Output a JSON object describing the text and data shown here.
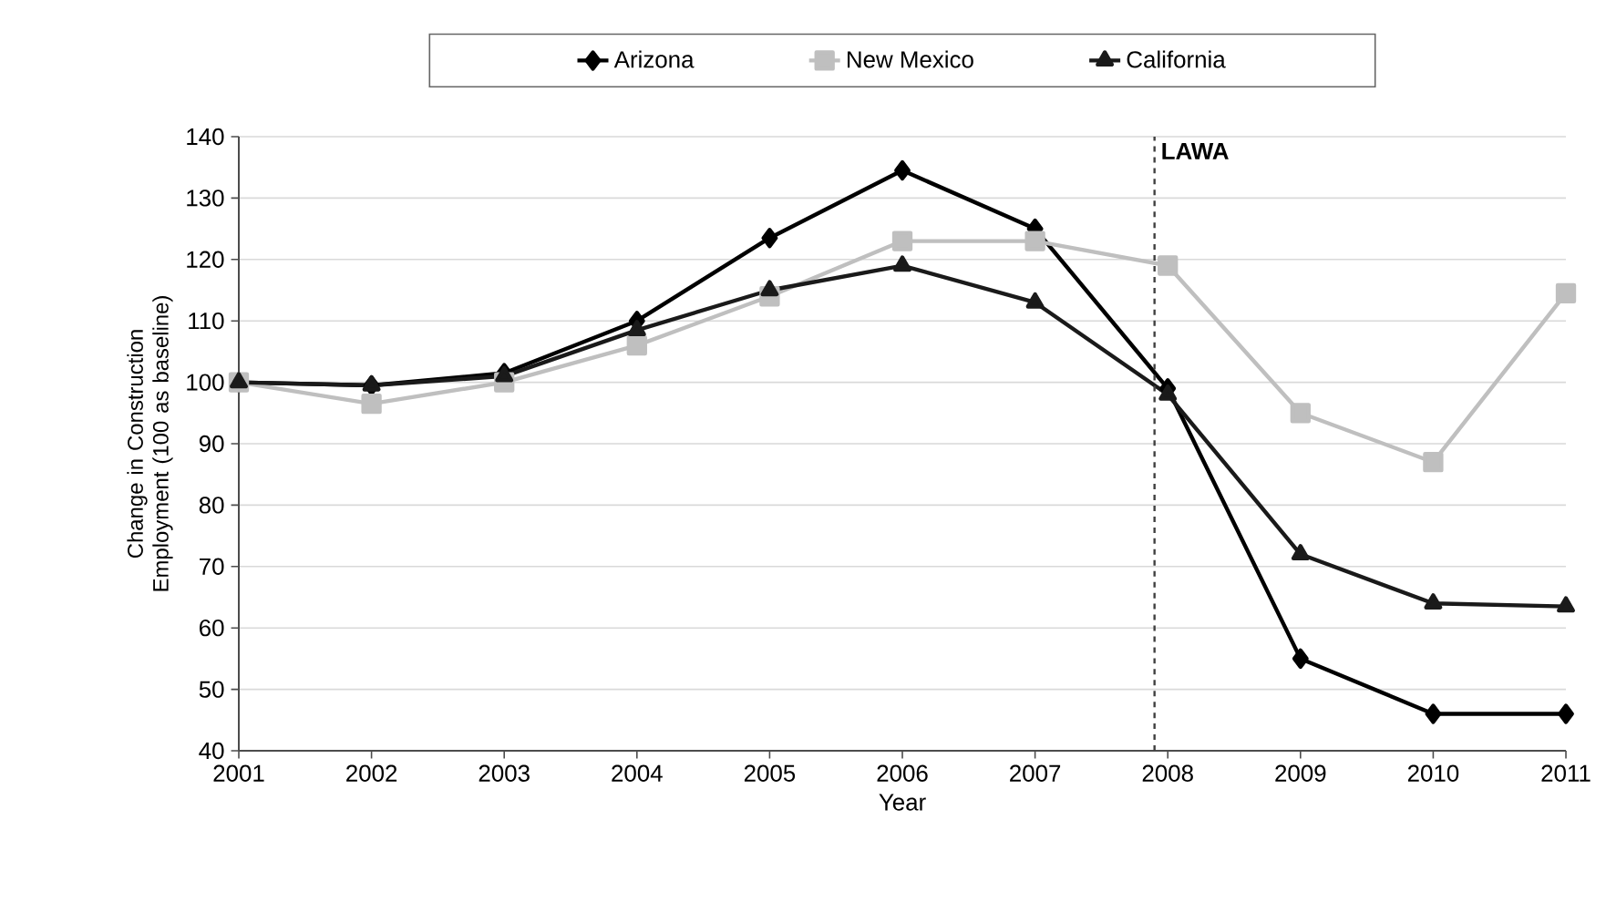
{
  "chart_data": {
    "type": "line",
    "xlabel": "Year",
    "ylabel": "Change in Construction Employment (100 as baseline)",
    "x": [
      2001,
      2002,
      2003,
      2004,
      2005,
      2006,
      2007,
      2008,
      2009,
      2010,
      2011
    ],
    "series": [
      {
        "name": "Arizona",
        "color": "#000000",
        "marker": "diamond",
        "values": [
          100,
          99.5,
          101.5,
          110,
          123.5,
          134.5,
          125,
          99,
          55,
          46,
          46
        ]
      },
      {
        "name": "New Mexico",
        "color": "#bfbfbf",
        "marker": "square",
        "values": [
          100,
          96.5,
          100,
          106,
          114,
          123,
          123,
          119,
          95,
          87,
          114.5
        ]
      },
      {
        "name": "California",
        "color": "#1a1a1a",
        "marker": "triangle",
        "values": [
          100,
          99.5,
          101,
          108.5,
          115,
          119,
          113,
          98,
          72,
          64,
          63.5
        ]
      }
    ],
    "xlim": [
      2001,
      2011
    ],
    "ylim": [
      40,
      140
    ],
    "xticks": [
      2001,
      2002,
      2003,
      2004,
      2005,
      2006,
      2007,
      2008,
      2009,
      2010,
      2011
    ],
    "yticks": [
      40,
      50,
      60,
      70,
      80,
      90,
      100,
      110,
      120,
      130,
      140
    ],
    "ref_lines": [
      {
        "axis": "x",
        "value": 2007.9,
        "label": "LAWA",
        "color": "#404040",
        "line_style": "dashed"
      }
    ],
    "grid": "y",
    "legend": "top",
    "line_style": "solid"
  }
}
